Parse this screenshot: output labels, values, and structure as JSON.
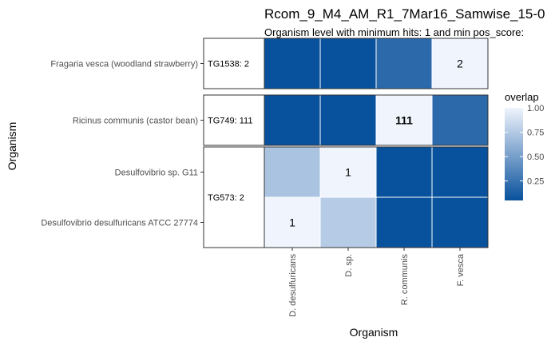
{
  "colors": {
    "low": "#08519c",
    "high": "#f0f4fd",
    "highlight_text": "#ff0000",
    "grid_line": "#ffffff",
    "panel_border": "#333333"
  },
  "chart_data": {
    "type": "heatmap",
    "title": "Rcom_9_M4_AM_R1_7Mar16_Samwise_15-0",
    "subtitle": "Organism level with minimum hits: 1 and min pos_score:",
    "xlabel": "Organism",
    "ylabel": "Organism",
    "x_categories": [
      "D. desulfuricans",
      "D. sp.",
      "R. communis",
      "F. vesca"
    ],
    "facets": [
      {
        "label": "TG1538:  2",
        "rows": [
          {
            "name": "Fragaria vesca (woodland strawberry)",
            "values": [
              0.0,
              0.0,
              0.15,
              1.0
            ],
            "labels": [
              "",
              "",
              "",
              "2"
            ]
          }
        ]
      },
      {
        "label": "TG749: 111",
        "rows": [
          {
            "name": "Ricinus communis (castor bean)",
            "values": [
              0.0,
              0.0,
              1.0,
              0.15
            ],
            "labels": [
              "",
              "",
              "111",
              ""
            ],
            "highlight": [
              false,
              false,
              true,
              false
            ]
          }
        ]
      },
      {
        "label": "TG573:  2",
        "rows": [
          {
            "name": "Desulfovibrio sp. G11",
            "values": [
              0.7,
              1.0,
              0.0,
              0.0
            ],
            "labels": [
              "",
              "1",
              "",
              ""
            ]
          },
          {
            "name": "Desulfovibrio desulfuricans ATCC 27774",
            "values": [
              1.0,
              0.75,
              0.0,
              0.0
            ],
            "labels": [
              "1",
              "",
              "",
              ""
            ]
          }
        ]
      }
    ],
    "legend": {
      "title": "overlap",
      "range": [
        0.05,
        1.0
      ],
      "ticks": [
        "1.00",
        "0.75",
        "0.50",
        "0.25"
      ],
      "tick_values": [
        1.0,
        0.75,
        0.5,
        0.25
      ],
      "position": "right"
    }
  }
}
